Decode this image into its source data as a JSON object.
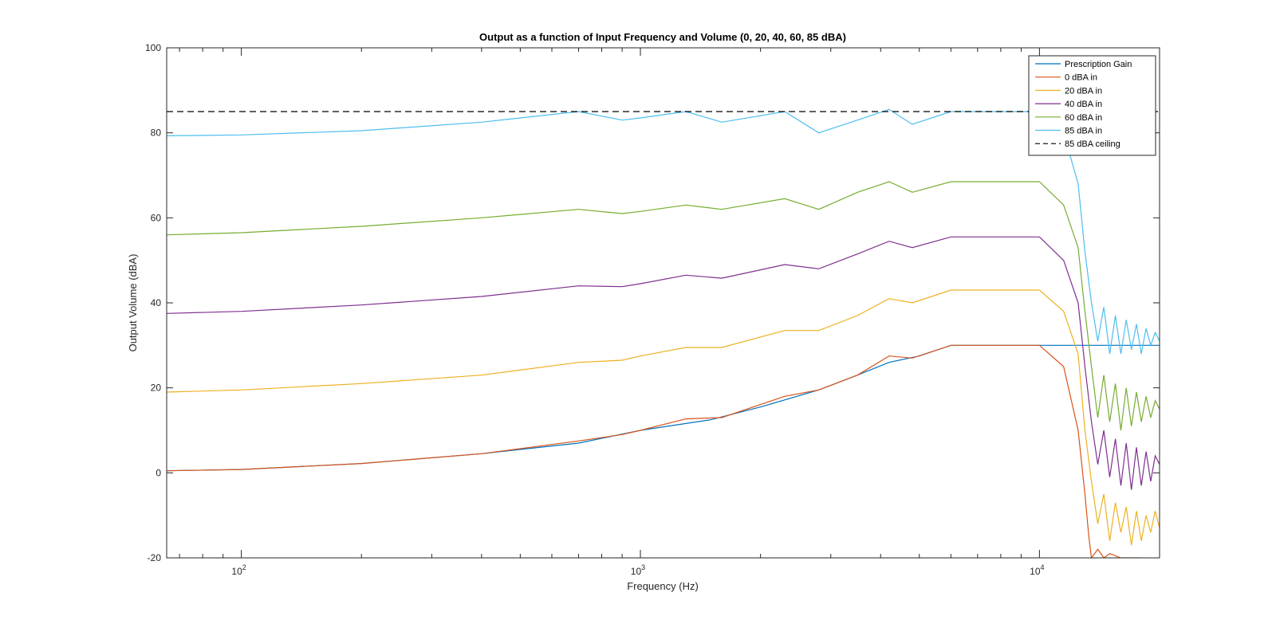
{
  "chart_data": {
    "type": "line",
    "title": "Output as a function of Input Frequency and Volume (0, 20, 40, 60, 85 dBA)",
    "xlabel": "Frequency (Hz)",
    "ylabel": "Output Volume (dBA)",
    "x_scale": "log",
    "xlim": [
      65,
      20000
    ],
    "ylim": [
      -20,
      100
    ],
    "y_ticks": [
      -20,
      0,
      20,
      40,
      60,
      80,
      100
    ],
    "x_tick_labels": [
      {
        "value": 100,
        "base": "10",
        "exp": "2"
      },
      {
        "value": 1000,
        "base": "10",
        "exp": "3"
      },
      {
        "value": 10000,
        "base": "10",
        "exp": "4"
      }
    ],
    "grid": false,
    "legend_position": "top-right",
    "series": [
      {
        "name": "Prescription Gain",
        "color": "#0072BD",
        "dash": "",
        "x": [
          65,
          100,
          200,
          400,
          700,
          1000,
          1500,
          2000,
          2800,
          3500,
          4200,
          5000,
          6000,
          10000,
          20000
        ],
        "y": [
          0.5,
          0.8,
          2.2,
          4.5,
          7,
          10,
          12.5,
          15.5,
          19.5,
          23,
          26,
          27.5,
          30,
          30,
          30
        ]
      },
      {
        "name": "0 dBA in",
        "color": "#D95319",
        "dash": "",
        "x": [
          65,
          100,
          200,
          400,
          700,
          900,
          1000,
          1300,
          1600,
          2300,
          2800,
          3500,
          4200,
          4800,
          6000,
          10000,
          11500,
          12500,
          13000,
          13300,
          13500,
          14000,
          14500,
          15000,
          16000,
          17000,
          18000
        ],
        "y": [
          0.5,
          0.8,
          2.2,
          4.5,
          7.5,
          9,
          10,
          12.7,
          13,
          18,
          19.5,
          23,
          27.5,
          27,
          30,
          30,
          25,
          10,
          -5,
          -15,
          -20,
          -18,
          -20,
          -19,
          -20,
          -20,
          -20
        ]
      },
      {
        "name": "20 dBA in",
        "color": "#EDB120",
        "dash": "",
        "x": [
          65,
          100,
          200,
          400,
          700,
          900,
          1000,
          1300,
          1600,
          2300,
          2800,
          3500,
          4200,
          4800,
          6000,
          10000,
          11500,
          12500,
          13000,
          13500,
          14000,
          14500,
          15000,
          15500,
          16000,
          16500,
          17000,
          17500,
          18000,
          18500,
          19000,
          19500,
          20000
        ],
        "y": [
          19,
          19.5,
          21,
          23,
          26,
          26.5,
          27.5,
          29.5,
          29.5,
          33.5,
          33.5,
          37,
          41,
          40,
          43,
          43,
          38,
          28,
          10,
          -2,
          -12,
          -5,
          -16,
          -7,
          -14,
          -8,
          -17,
          -9,
          -16,
          -10,
          -14,
          -9,
          -13
        ]
      },
      {
        "name": "40 dBA in",
        "color": "#7E2F8E",
        "dash": "",
        "x": [
          65,
          100,
          200,
          400,
          700,
          900,
          1000,
          1300,
          1600,
          2300,
          2800,
          3500,
          4200,
          4800,
          6000,
          10000,
          11500,
          12500,
          13000,
          13500,
          14000,
          14500,
          15000,
          15500,
          16000,
          16500,
          17000,
          17500,
          18000,
          18500,
          19000,
          19500,
          20000
        ],
        "y": [
          37.5,
          38,
          39.5,
          41.5,
          44,
          43.8,
          44.5,
          46.5,
          45.8,
          49,
          48,
          51.5,
          54.5,
          53,
          55.5,
          55.5,
          50,
          40,
          25,
          12,
          2,
          10,
          -1,
          8,
          -3,
          7,
          -4,
          6,
          -3,
          5,
          -2,
          4,
          2
        ]
      },
      {
        "name": "60 dBA in",
        "color": "#77AC30",
        "dash": "",
        "x": [
          65,
          100,
          200,
          400,
          700,
          900,
          1000,
          1300,
          1600,
          2300,
          2800,
          3500,
          4200,
          4800,
          6000,
          10000,
          11500,
          12500,
          13000,
          13500,
          14000,
          14500,
          15000,
          15500,
          16000,
          16500,
          17000,
          17500,
          18000,
          18500,
          19000,
          19500,
          20000
        ],
        "y": [
          56,
          56.5,
          58,
          60,
          62,
          61,
          61.5,
          63,
          62,
          64.5,
          62,
          66,
          68.5,
          66,
          68.5,
          68.5,
          63,
          53,
          38,
          25,
          13,
          23,
          12,
          21,
          10,
          20,
          11,
          19,
          12,
          18,
          13,
          17,
          15
        ]
      },
      {
        "name": "85 dBA in",
        "color": "#4DBEEE",
        "dash": "",
        "x": [
          65,
          100,
          200,
          400,
          700,
          900,
          1000,
          1300,
          1600,
          2300,
          2800,
          3500,
          4200,
          4800,
          6000,
          10000,
          11500,
          12500,
          13000,
          13500,
          14000,
          14500,
          15000,
          15500,
          16000,
          16500,
          17000,
          17500,
          18000,
          18500,
          19000,
          19500,
          20000
        ],
        "y": [
          79.3,
          79.5,
          80.5,
          82.5,
          85,
          83,
          83.5,
          85,
          82.5,
          85,
          80,
          83,
          85.5,
          82,
          85,
          85,
          80,
          68,
          52,
          40,
          31,
          39,
          28,
          37,
          28,
          36,
          29,
          35,
          28,
          34,
          30,
          33,
          31
        ]
      },
      {
        "name": "85 dBA ceiling",
        "color": "#000000",
        "dash": "8,5",
        "x": [
          65,
          20000
        ],
        "y": [
          85,
          85
        ]
      }
    ]
  }
}
